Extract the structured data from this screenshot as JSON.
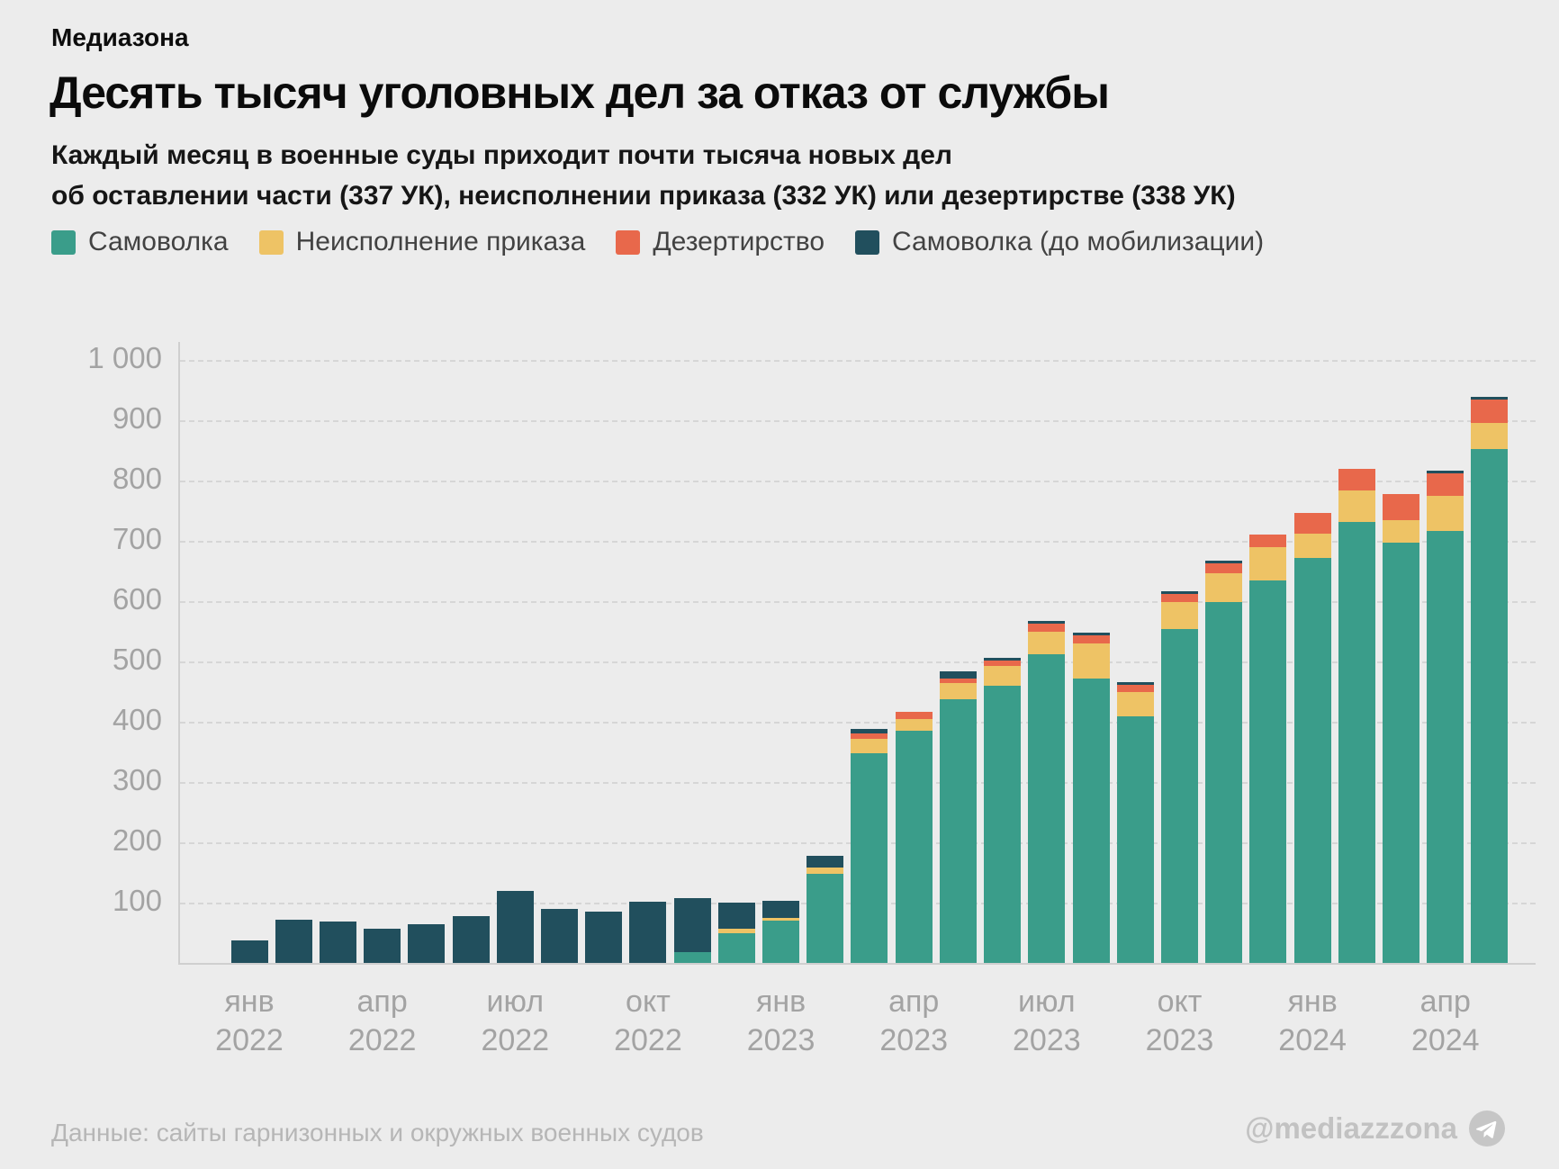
{
  "brand": "Медиазона",
  "title": "Десять тысяч уголовных дел за отказ от службы",
  "subtitle_line1": "Каждый месяц в военные суды приходит почти тысяча новых дел",
  "subtitle_line2": "об оставлении части (337 УК), неисполнении приказа (332 УК) или дезертирстве (338 УК)",
  "colors": {
    "background": "#ececec",
    "samovolka": "#3a9d8a",
    "neispolnenie": "#eec365",
    "dezertirstvo": "#e8684b",
    "samovolka_do_mobilizacii": "#214f5d",
    "axis_text": "#a3a3a3",
    "grid": "#d6d6d6"
  },
  "legend": [
    {
      "key": "samovolka",
      "label": "Самоволка",
      "color": "#3a9d8a"
    },
    {
      "key": "neispolnenie",
      "label": "Неисполнение приказа",
      "color": "#eec365"
    },
    {
      "key": "dezertirstvo",
      "label": "Дезертирство",
      "color": "#e8684b"
    },
    {
      "key": "samovolka-do-mobilizacii",
      "label": "Самоволка (до мобилизации)",
      "color": "#214f5d"
    }
  ],
  "footer": {
    "source": "Данные: сайты гарнизонных и окружных военных судов",
    "handle": "@mediazzzona",
    "handle_icon": "telegram-icon"
  },
  "chart_data": {
    "type": "bar",
    "stacked": true,
    "grid": "horizontal-dashed",
    "legend_position": "top",
    "ylim": [
      0,
      1000
    ],
    "yticks": [
      100,
      200,
      300,
      400,
      500,
      600,
      700,
      800,
      900,
      1000
    ],
    "ytick_labels": [
      "100",
      "200",
      "300",
      "400",
      "500",
      "600",
      "700",
      "800",
      "900",
      "1 000"
    ],
    "x_label_every": 3,
    "x": [
      "янв 2022",
      "фев 2022",
      "мар 2022",
      "апр 2022",
      "май 2022",
      "июн 2022",
      "июл 2022",
      "авг 2022",
      "сен 2022",
      "окт 2022",
      "ноя 2022",
      "дек 2022",
      "янв 2023",
      "фев 2023",
      "мар 2023",
      "апр 2023",
      "май 2023",
      "июн 2023",
      "июл 2023",
      "авг 2023",
      "сен 2023",
      "окт 2023",
      "ноя 2023",
      "дек 2023",
      "янв 2024",
      "фев 2024",
      "мар 2024",
      "апр 2024",
      "май 2024"
    ],
    "series": [
      {
        "key": "samovolka",
        "name": "Самоволка",
        "color": "#3a9d8a",
        "values": [
          0,
          0,
          0,
          0,
          0,
          0,
          0,
          0,
          0,
          0,
          18,
          50,
          70,
          148,
          348,
          385,
          438,
          460,
          512,
          472,
          409,
          554,
          599,
          634,
          671,
          732,
          697,
          717,
          852
        ]
      },
      {
        "key": "neispolnenie",
        "name": "Неисполнение приказа",
        "color": "#eec365",
        "values": [
          0,
          0,
          0,
          0,
          0,
          0,
          0,
          0,
          0,
          0,
          0,
          7,
          5,
          10,
          24,
          20,
          26,
          32,
          38,
          58,
          41,
          45,
          47,
          55,
          41,
          52,
          38,
          58,
          43
        ]
      },
      {
        "key": "dezertirstvo",
        "name": "Дезертирство",
        "color": "#e8684b",
        "values": [
          0,
          0,
          0,
          0,
          0,
          0,
          0,
          0,
          0,
          0,
          0,
          0,
          0,
          0,
          8,
          12,
          7,
          10,
          12,
          14,
          11,
          13,
          17,
          21,
          35,
          35,
          42,
          37,
          40
        ]
      },
      {
        "key": "samovolka-do-mobilizacii",
        "name": "Самоволка (до мобилизации)",
        "color": "#214f5d",
        "values": [
          38,
          72,
          69,
          56,
          64,
          78,
          120,
          90,
          85,
          102,
          90,
          43,
          28,
          20,
          8,
          0,
          12,
          4,
          5,
          4,
          5,
          4,
          4,
          0,
          0,
          0,
          0,
          5,
          4
        ]
      }
    ]
  }
}
